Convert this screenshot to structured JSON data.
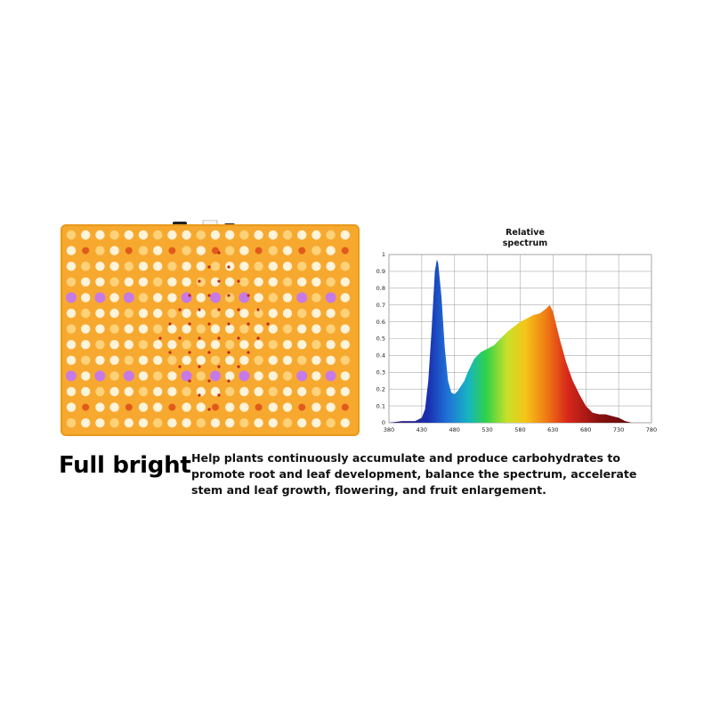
{
  "colors": {
    "panel_bg": "#f7a92f",
    "led_white": "#fff3d9",
    "led_warm": "#ffd27a",
    "led_red": "#e05a1c",
    "led_purple": "#c77ae6"
  },
  "product": {
    "image_label": "LED grow light panel"
  },
  "chart_data": {
    "type": "area",
    "title": "Relative\nspectrum",
    "xlabel": "",
    "ylabel": "",
    "xlim": [
      380,
      780
    ],
    "ylim": [
      0,
      1
    ],
    "xticks": [
      380,
      430,
      480,
      530,
      580,
      630,
      680,
      730,
      780
    ],
    "yticks": [
      0,
      0.1,
      0.2,
      0.3,
      0.4,
      0.5,
      0.6,
      0.7,
      0.8,
      0.9,
      1
    ],
    "ytick_labels": [
      "0",
      "0.1",
      "0.2",
      "0.3",
      "0.4",
      "0.5",
      "0.6",
      "0.7",
      "0.8",
      "0.9",
      "1"
    ],
    "grid": true,
    "x": [
      380,
      400,
      410,
      420,
      430,
      435,
      440,
      445,
      450,
      453,
      455,
      460,
      465,
      470,
      475,
      480,
      485,
      490,
      495,
      500,
      510,
      520,
      530,
      540,
      550,
      560,
      570,
      580,
      590,
      600,
      610,
      620,
      625,
      630,
      640,
      650,
      660,
      670,
      680,
      690,
      700,
      710,
      720,
      730,
      740,
      750,
      780
    ],
    "values": [
      0.0,
      0.01,
      0.01,
      0.01,
      0.03,
      0.08,
      0.25,
      0.55,
      0.9,
      0.97,
      0.95,
      0.75,
      0.45,
      0.25,
      0.18,
      0.17,
      0.19,
      0.22,
      0.25,
      0.3,
      0.38,
      0.42,
      0.44,
      0.46,
      0.5,
      0.54,
      0.57,
      0.6,
      0.62,
      0.64,
      0.65,
      0.68,
      0.7,
      0.66,
      0.5,
      0.36,
      0.25,
      0.17,
      0.1,
      0.06,
      0.05,
      0.05,
      0.04,
      0.03,
      0.01,
      0.0,
      0.0
    ]
  },
  "text": {
    "headline": "Full bright",
    "description": "Help plants continuously accumulate and produce carbohydrates to promote root and leaf development, balance the spectrum, accelerate stem and leaf growth, flowering, and fruit enlargement."
  }
}
